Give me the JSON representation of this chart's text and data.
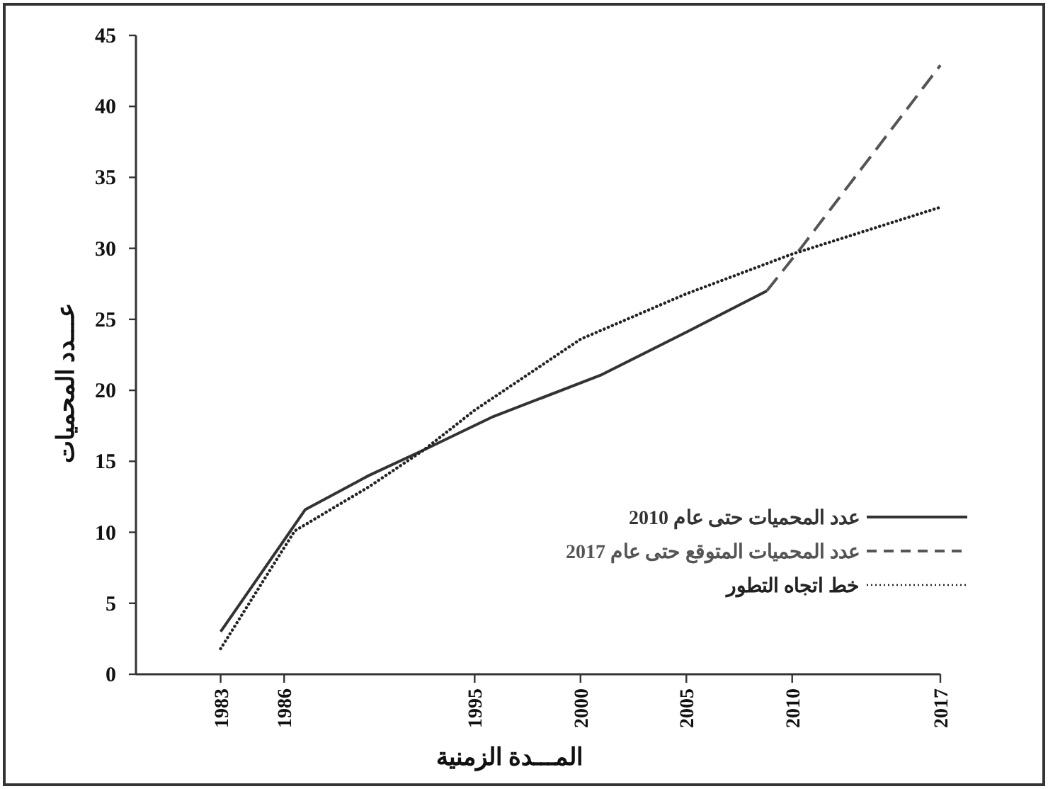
{
  "chart_data": {
    "type": "line",
    "xlabel": "المـــدة الزمنية",
    "ylabel": "عـــدد المحميات",
    "xlim": [
      1979,
      2017
    ],
    "xticks": [
      1983,
      1986,
      1995,
      2000,
      2005,
      2010,
      2017
    ],
    "ylim": [
      0,
      45
    ],
    "yticks": [
      0,
      5,
      10,
      15,
      20,
      25,
      30,
      35,
      40,
      45
    ],
    "grid": false,
    "legend": "bottom right",
    "series": [
      {
        "name": "عدد المحميات حتى عام 2010",
        "color": "#333333",
        "line_style": "solid",
        "x": [
          1983,
          1987,
          1990,
          1992.6,
          1995.8,
          2001,
          2005,
          2008.8
        ],
        "values": [
          3,
          11.6,
          14,
          15.8,
          18.1,
          21.1,
          24.1,
          27
        ]
      },
      {
        "name": "عدد المحميات المتوقع حتى عام 2017",
        "color": "#555555",
        "line_style": "dashed",
        "x": [
          2008.8,
          2010.4,
          2017
        ],
        "values": [
          27,
          30,
          42.9
        ]
      },
      {
        "name": "خط اتجاه التطور",
        "color": "#222222",
        "line_style": "dotted",
        "x": [
          1983,
          1986.5,
          1990,
          1992.6,
          1995,
          2000,
          2005,
          2010,
          2017
        ],
        "values": [
          1.8,
          10.1,
          13.2,
          15.8,
          18.6,
          23.6,
          26.8,
          29.6,
          32.9
        ]
      }
    ]
  }
}
